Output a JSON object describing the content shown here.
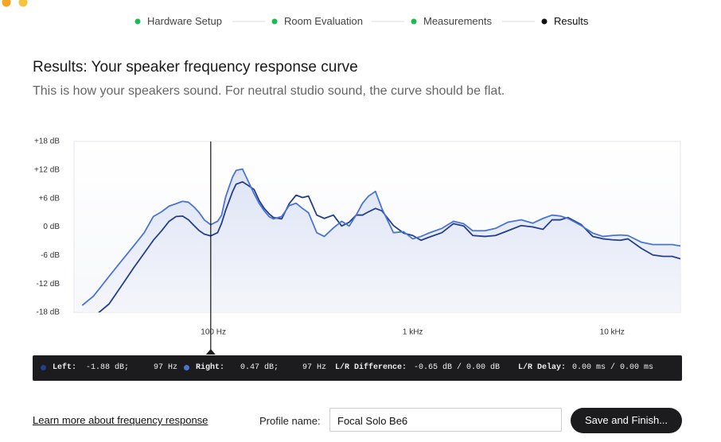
{
  "steps": [
    {
      "label": "Hardware Setup",
      "color": "#1db954"
    },
    {
      "label": "Room Evaluation",
      "color": "#1db954"
    },
    {
      "label": "Measurements",
      "color": "#1db954"
    },
    {
      "label": "Results",
      "color": "#111111"
    }
  ],
  "heading": "Results: Your speaker frequency response curve",
  "subheading": "This is how your speakers sound. For neutral studio sound, the curve should be flat.",
  "chart_data": {
    "type": "line",
    "log_x": true,
    "grid": true,
    "xlim": [
      20,
      22000
    ],
    "ylim": [
      -18,
      18
    ],
    "xticks": [
      {
        "value": 100,
        "label": "100 Hz"
      },
      {
        "value": 1000,
        "label": "1 kHz"
      },
      {
        "value": 10000,
        "label": "10 kHz"
      }
    ],
    "x_minor_grid": [
      20,
      30,
      40,
      50,
      60,
      70,
      80,
      90,
      200,
      300,
      400,
      500,
      600,
      700,
      800,
      900,
      2000,
      3000,
      4000,
      5000,
      6000,
      7000,
      8000,
      9000,
      20000
    ],
    "yticks": [
      {
        "value": 18,
        "label": "+18 dB"
      },
      {
        "value": 12,
        "label": "+12 dB"
      },
      {
        "value": 6,
        "label": "+6 dB"
      },
      {
        "value": 0,
        "label": "0 dB"
      },
      {
        "value": -6,
        "label": "-6 dB"
      },
      {
        "value": -12,
        "label": "-12 dB"
      },
      {
        "value": -18,
        "label": "-18 dB"
      }
    ],
    "y_minor_grid": [
      15,
      9,
      3,
      -3,
      -9,
      -15
    ],
    "cursor_x": 97,
    "x": [
      22,
      25,
      30,
      35,
      40,
      45,
      50,
      55,
      60,
      65,
      70,
      75,
      80,
      85,
      90,
      97,
      105,
      110,
      115,
      120,
      125,
      130,
      140,
      150,
      160,
      170,
      180,
      190,
      200,
      220,
      240,
      260,
      280,
      300,
      330,
      360,
      400,
      440,
      480,
      520,
      560,
      600,
      650,
      700,
      800,
      900,
      1000,
      1100,
      1200,
      1400,
      1600,
      1800,
      2000,
      2300,
      2600,
      3000,
      3500,
      4000,
      4500,
      5000,
      5500,
      6000,
      7000,
      8000,
      9000,
      10000,
      11000,
      12000,
      14000,
      16000,
      18000,
      20000,
      22000
    ],
    "series": [
      {
        "name": "Left:",
        "color": "#243f8c",
        "values": [
          -21,
          -19,
          -16.2,
          -12.1,
          -8.5,
          -5.5,
          -2.8,
          -0.8,
          1.2,
          2.2,
          2.3,
          1.5,
          0.3,
          -0.8,
          -1.5,
          -1.88,
          -1.2,
          0.8,
          3.4,
          5.5,
          7.5,
          9.0,
          9.5,
          8.7,
          7.9,
          5.5,
          3.9,
          2.8,
          2.0,
          1.7,
          4.9,
          6.7,
          6.2,
          6.5,
          2.5,
          1.8,
          2.5,
          0.2,
          1.0,
          2.5,
          2.5,
          3.2,
          3.9,
          3.4,
          0.3,
          -1.3,
          -1.8,
          -2.8,
          -2.2,
          -1.2,
          0.7,
          0.2,
          -1.8,
          -2.0,
          -1.8,
          -0.8,
          0.3,
          0,
          -0.5,
          1.5,
          1.5,
          2.0,
          0.5,
          -2.0,
          -2.5,
          -2.7,
          -2.8,
          -2.5,
          -4.5,
          -5.9,
          -6.2,
          -6.2,
          -6.7
        ]
      },
      {
        "name": "Right:",
        "color": "#4a74d4",
        "values": [
          -16.5,
          -14.6,
          -10.4,
          -6.9,
          -3.9,
          -1.2,
          2.2,
          3.2,
          4.4,
          4.9,
          5.4,
          5.2,
          4.2,
          3.0,
          1.5,
          0.47,
          1.2,
          2.5,
          6.2,
          8.5,
          10.6,
          11.9,
          12.2,
          9.5,
          7.0,
          4.9,
          3.4,
          2.2,
          1.7,
          2.2,
          4.5,
          5.0,
          3.9,
          3.0,
          -1.2,
          -2.0,
          -0.2,
          1.2,
          0.2,
          2.5,
          5.0,
          6.5,
          7.5,
          3.9,
          -1.2,
          -1.0,
          -2.5,
          -2.0,
          -1.3,
          -0.3,
          1.2,
          0.7,
          -0.8,
          -0.8,
          -0.3,
          1.0,
          1.5,
          0.8,
          1.8,
          2.5,
          2.3,
          1.8,
          0.3,
          -1.3,
          -2.0,
          -1.8,
          -1.7,
          -1.8,
          -3.2,
          -3.7,
          -3.7,
          -3.7,
          -4.0
        ]
      }
    ]
  },
  "readout": {
    "left_value": "-1.88 dB;",
    "left_freq": "97 Hz",
    "right_value": "0.47 dB;",
    "right_freq": "97 Hz",
    "diff_label": "L/R Difference:",
    "diff_value": "-0.65 dB / 0.00 dB",
    "delay_label": "L/R Delay:",
    "delay_value": "0.00 ms / 0.00 ms"
  },
  "footer": {
    "link": "Learn more about frequency response",
    "profile_label": "Profile name:",
    "profile_value": "Focal Solo Be6",
    "button": "Save and Finish..."
  }
}
